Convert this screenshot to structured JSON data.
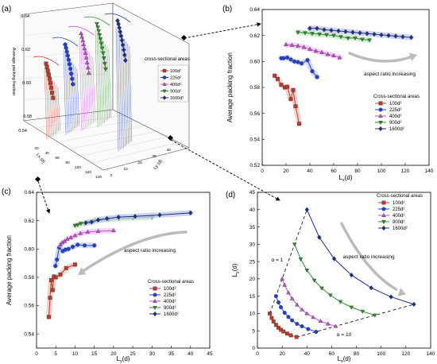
{
  "panel_labels": {
    "a": "(a)",
    "b": "(b)",
    "c": "(c)",
    "d": "(d)"
  },
  "colors": {
    "100": "#c0392b",
    "225": "#1f3fd6",
    "400": "#c44dd6",
    "900": "#2e8b2e",
    "1600": "#1a2f8a",
    "band_100": "#f2c6c2",
    "band_225": "#c8d0f7",
    "band_400": "#f3c8f7",
    "band_900": "#c8eac8",
    "band_1600": "#c4cbe8",
    "arrow": "#bbbbbb"
  },
  "chart_data": [
    {
      "id": "a",
      "type": "scatter",
      "title": "",
      "legend_title": "cross-sectional areas",
      "legend": [
        "100d²",
        "225d²",
        "400d²",
        "900d²",
        "1600d²"
      ],
      "legend_position": "right",
      "zlabel": "Average packing fraction",
      "z_ticks": [
        "0.58",
        "0.60",
        "0.62",
        "0.64"
      ],
      "corner_label": "0.54",
      "x_axis_label": "Lx (d)",
      "y_axis_label": "Ly (d)",
      "x_ticks": [
        "20",
        "40",
        "60",
        "80",
        "100",
        "120",
        "140"
      ],
      "y_ticks": [
        "0",
        "10",
        "20",
        "30",
        "40"
      ]
    },
    {
      "id": "b",
      "type": "line",
      "title": "",
      "xlabel_main": "L",
      "xlabel_sub": "x",
      "xlabel_tail": "(d)",
      "ylabel": "Average packing fraction",
      "xlim": [
        0,
        140
      ],
      "ylim": [
        0.52,
        0.64
      ],
      "x_ticks": [
        0,
        20,
        40,
        60,
        80,
        100,
        120,
        140
      ],
      "y_ticks": [
        "0.52",
        "0.54",
        "0.56",
        "0.58",
        "0.60",
        "0.62",
        "0.64"
      ],
      "legend_title": "Cross-sectional areas",
      "legend_position": "right",
      "annotation": "aspect ratio increasing",
      "series": [
        {
          "name": "100d²",
          "marker": "square",
          "x": [
            10.5,
            13,
            16,
            19,
            21,
            24,
            26,
            28,
            31
          ],
          "y": [
            0.589,
            0.5865,
            0.582,
            0.58,
            0.5805,
            0.571,
            0.578,
            0.5655,
            0.552
          ]
        },
        {
          "name": "225d²",
          "marker": "circle",
          "x": [
            16,
            18,
            21,
            24,
            27,
            30,
            33,
            38,
            42,
            46
          ],
          "y": [
            0.6025,
            0.6025,
            0.603,
            0.6015,
            0.6,
            0.5995,
            0.5985,
            0.601,
            0.5925,
            0.588
          ]
        },
        {
          "name": "400d²",
          "marker": "triangle-up",
          "x": [
            20,
            25,
            30,
            35,
            40,
            45,
            50,
            55,
            60,
            65
          ],
          "y": [
            0.613,
            0.6125,
            0.612,
            0.611,
            0.6095,
            0.608,
            0.607,
            0.6055,
            0.6045,
            0.603
          ]
        },
        {
          "name": "900d²",
          "marker": "triangle-down",
          "x": [
            30,
            36,
            42,
            48,
            54,
            60,
            66,
            72,
            78,
            84,
            90
          ],
          "y": [
            0.6225,
            0.622,
            0.6215,
            0.621,
            0.6205,
            0.62,
            0.619,
            0.618,
            0.618,
            0.617,
            0.6165
          ]
        },
        {
          "name": "1600d²",
          "marker": "diamond",
          "x": [
            40,
            46,
            52,
            58,
            64,
            70,
            76,
            82,
            88,
            94,
            100,
            106,
            112,
            118,
            125
          ],
          "y": [
            0.6255,
            0.6255,
            0.6245,
            0.624,
            0.6235,
            0.623,
            0.6225,
            0.622,
            0.6215,
            0.621,
            0.6205,
            0.62,
            0.6195,
            0.619,
            0.6185
          ]
        }
      ]
    },
    {
      "id": "c",
      "type": "line",
      "title": "",
      "xlabel_main": "L",
      "xlabel_sub": "y",
      "xlabel_tail": "(d)",
      "ylabel": "Average packing fraction",
      "xlim": [
        0,
        45
      ],
      "ylim": [
        0.53,
        0.64
      ],
      "x_ticks": [
        0,
        5,
        10,
        15,
        20,
        25,
        30,
        35,
        40,
        45
      ],
      "y_ticks": [
        "0.54",
        "0.56",
        "0.58",
        "0.60",
        "0.62",
        "0.64"
      ],
      "legend_title": "Cross-sectional areas",
      "legend_position": "bottom-right",
      "annotation": "aspect ratio increasing",
      "series": [
        {
          "name": "100d²",
          "marker": "square",
          "x": [
            3.2,
            3.5,
            3.8,
            4.2,
            4.5,
            5.0,
            6.2,
            7.7,
            10.0
          ],
          "y": [
            0.552,
            0.5655,
            0.578,
            0.571,
            0.5805,
            0.58,
            0.582,
            0.5865,
            0.589
          ]
        },
        {
          "name": "225d²",
          "marker": "circle",
          "x": [
            4.9,
            5.3,
            5.9,
            6.8,
            7.5,
            8.3,
            9.4,
            10.7,
            12.5,
            15.0
          ],
          "y": [
            0.588,
            0.5925,
            0.601,
            0.5985,
            0.5995,
            0.6,
            0.6015,
            0.603,
            0.6025,
            0.6025
          ]
        },
        {
          "name": "400d²",
          "marker": "triangle-up",
          "x": [
            6.2,
            6.7,
            7.3,
            8.0,
            8.9,
            10.0,
            11.4,
            13.3,
            16.0,
            20.0
          ],
          "y": [
            0.603,
            0.6045,
            0.6055,
            0.607,
            0.608,
            0.6095,
            0.611,
            0.612,
            0.6125,
            0.613
          ]
        },
        {
          "name": "900d²",
          "marker": "triangle-down",
          "x": [
            10.0,
            10.7,
            11.5,
            12.5,
            13.6,
            15.0,
            16.7,
            18.8,
            21.4,
            25.0,
            30.0
          ],
          "y": [
            0.6165,
            0.617,
            0.618,
            0.618,
            0.619,
            0.62,
            0.6205,
            0.621,
            0.6215,
            0.622,
            0.6225
          ]
        },
        {
          "name": "1600d²",
          "marker": "diamond",
          "x": [
            12.8,
            14.3,
            16.0,
            18.3,
            21.3,
            25.6,
            32.0,
            40.0
          ],
          "y": [
            0.6185,
            0.619,
            0.6205,
            0.6215,
            0.6225,
            0.623,
            0.624,
            0.6255
          ]
        }
      ]
    },
    {
      "id": "d",
      "type": "line",
      "title": "",
      "xlabel_main": "L",
      "xlabel_sub": "x",
      "xlabel_tail": "(d)",
      "ylabel_main": "L",
      "ylabel_sub": "y",
      "ylabel_tail": "(d)",
      "xlim": [
        0,
        140
      ],
      "ylim": [
        0,
        45
      ],
      "x_ticks": [
        0,
        20,
        40,
        60,
        80,
        100,
        120,
        140
      ],
      "y_ticks": [
        0,
        5,
        10,
        15,
        20,
        25,
        30,
        35,
        40,
        45
      ],
      "legend_title": "Cross-sectional areas",
      "legend_position": "top-right",
      "annotation": "aspect ratio increasing",
      "alpha_labels": [
        "α = 1",
        "α = 10"
      ],
      "guide_ratio1": {
        "x": [
          10,
          40
        ],
        "y": [
          10,
          40
        ]
      },
      "guide_ratio10": {
        "x": [
          31.6,
          126.5
        ],
        "y": [
          3.16,
          12.65
        ]
      },
      "series": [
        {
          "name": "100d²",
          "marker": "square",
          "x": [
            10,
            11.5,
            13,
            15,
            17,
            19,
            21,
            24,
            27,
            31.6
          ],
          "y": [
            10,
            8.7,
            7.7,
            6.7,
            5.9,
            5.3,
            4.8,
            4.2,
            3.7,
            3.2
          ]
        },
        {
          "name": "225d²",
          "marker": "circle",
          "x": [
            15,
            17,
            19,
            22,
            25,
            28,
            32,
            36,
            41,
            47.4
          ],
          "y": [
            15,
            13.2,
            11.8,
            10.2,
            9.0,
            8.0,
            7.0,
            6.3,
            5.5,
            4.7
          ]
        },
        {
          "name": "400d²",
          "marker": "triangle-up",
          "x": [
            20,
            22,
            25,
            28,
            32,
            36,
            40,
            45,
            51,
            57,
            63.2
          ],
          "y": [
            20,
            18.2,
            16,
            14.3,
            12.5,
            11.1,
            10,
            8.9,
            7.8,
            7.0,
            6.3
          ]
        },
        {
          "name": "900d²",
          "marker": "triangle-down",
          "x": [
            30,
            35,
            40,
            46,
            52,
            59,
            67,
            76,
            85,
            94.9
          ],
          "y": [
            30,
            25.7,
            22.5,
            19.6,
            17.3,
            15.3,
            13.4,
            11.8,
            10.6,
            9.5
          ]
        },
        {
          "name": "1600d²",
          "marker": "diamond",
          "x": [
            40,
            50,
            62,
            76,
            92,
            108,
            126.5
          ],
          "y": [
            40,
            32,
            25.8,
            21.1,
            17.4,
            14.8,
            12.65
          ]
        }
      ]
    }
  ]
}
